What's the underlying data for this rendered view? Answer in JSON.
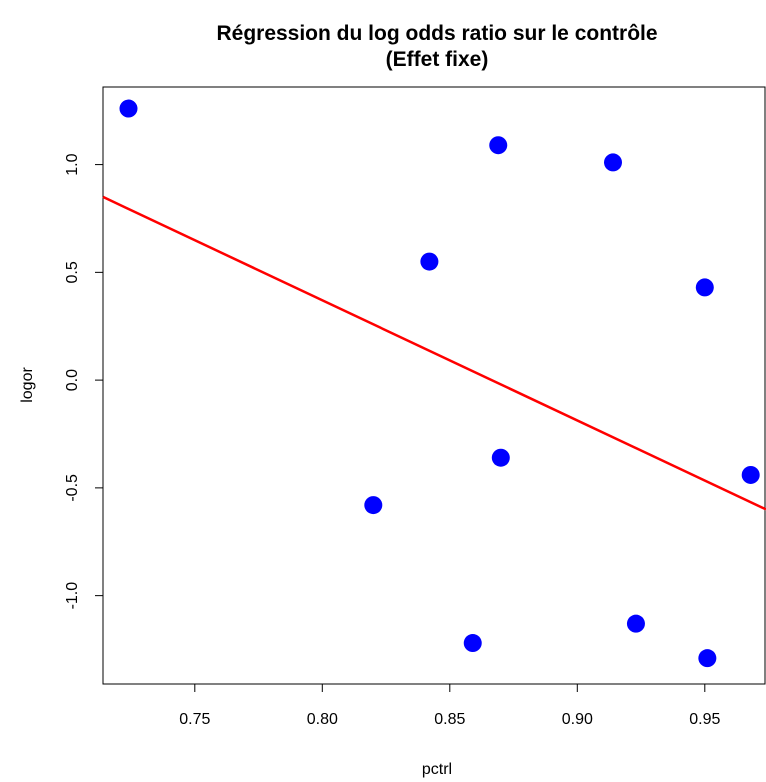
{
  "chart_data": {
    "type": "scatter",
    "title_lines": [
      "Régression du log odds ratio sur le contrôle",
      "(Effet fixe)"
    ],
    "xlabel": "pctrl",
    "ylabel": "logor",
    "xlim": [
      0.714,
      0.974
    ],
    "ylim": [
      -1.41,
      1.36
    ],
    "x_ticks": [
      0.75,
      0.8,
      0.85,
      0.9,
      0.95
    ],
    "x_tick_labels": [
      "0.75",
      "0.80",
      "0.85",
      "0.90",
      "0.95"
    ],
    "y_ticks": [
      -1.0,
      -0.5,
      0.0,
      0.5,
      1.0
    ],
    "y_tick_labels": [
      "-1.0",
      "-0.5",
      "0.0",
      "0.5",
      "1.0"
    ],
    "grid": false,
    "points": [
      {
        "x": 0.724,
        "y": 1.26
      },
      {
        "x": 0.82,
        "y": -0.58
      },
      {
        "x": 0.842,
        "y": 0.55
      },
      {
        "x": 0.859,
        "y": -1.22
      },
      {
        "x": 0.869,
        "y": 1.09
      },
      {
        "x": 0.87,
        "y": -0.36
      },
      {
        "x": 0.914,
        "y": 1.01
      },
      {
        "x": 0.923,
        "y": -1.13
      },
      {
        "x": 0.95,
        "y": 0.43
      },
      {
        "x": 0.951,
        "y": -1.29
      },
      {
        "x": 0.968,
        "y": -0.44
      }
    ],
    "regression_line": {
      "x": [
        0.714,
        0.974
      ],
      "y": [
        0.85,
        -0.6
      ]
    },
    "colors": {
      "points": "#0000ff",
      "line": "#ff0000",
      "axis": "#000000"
    }
  }
}
